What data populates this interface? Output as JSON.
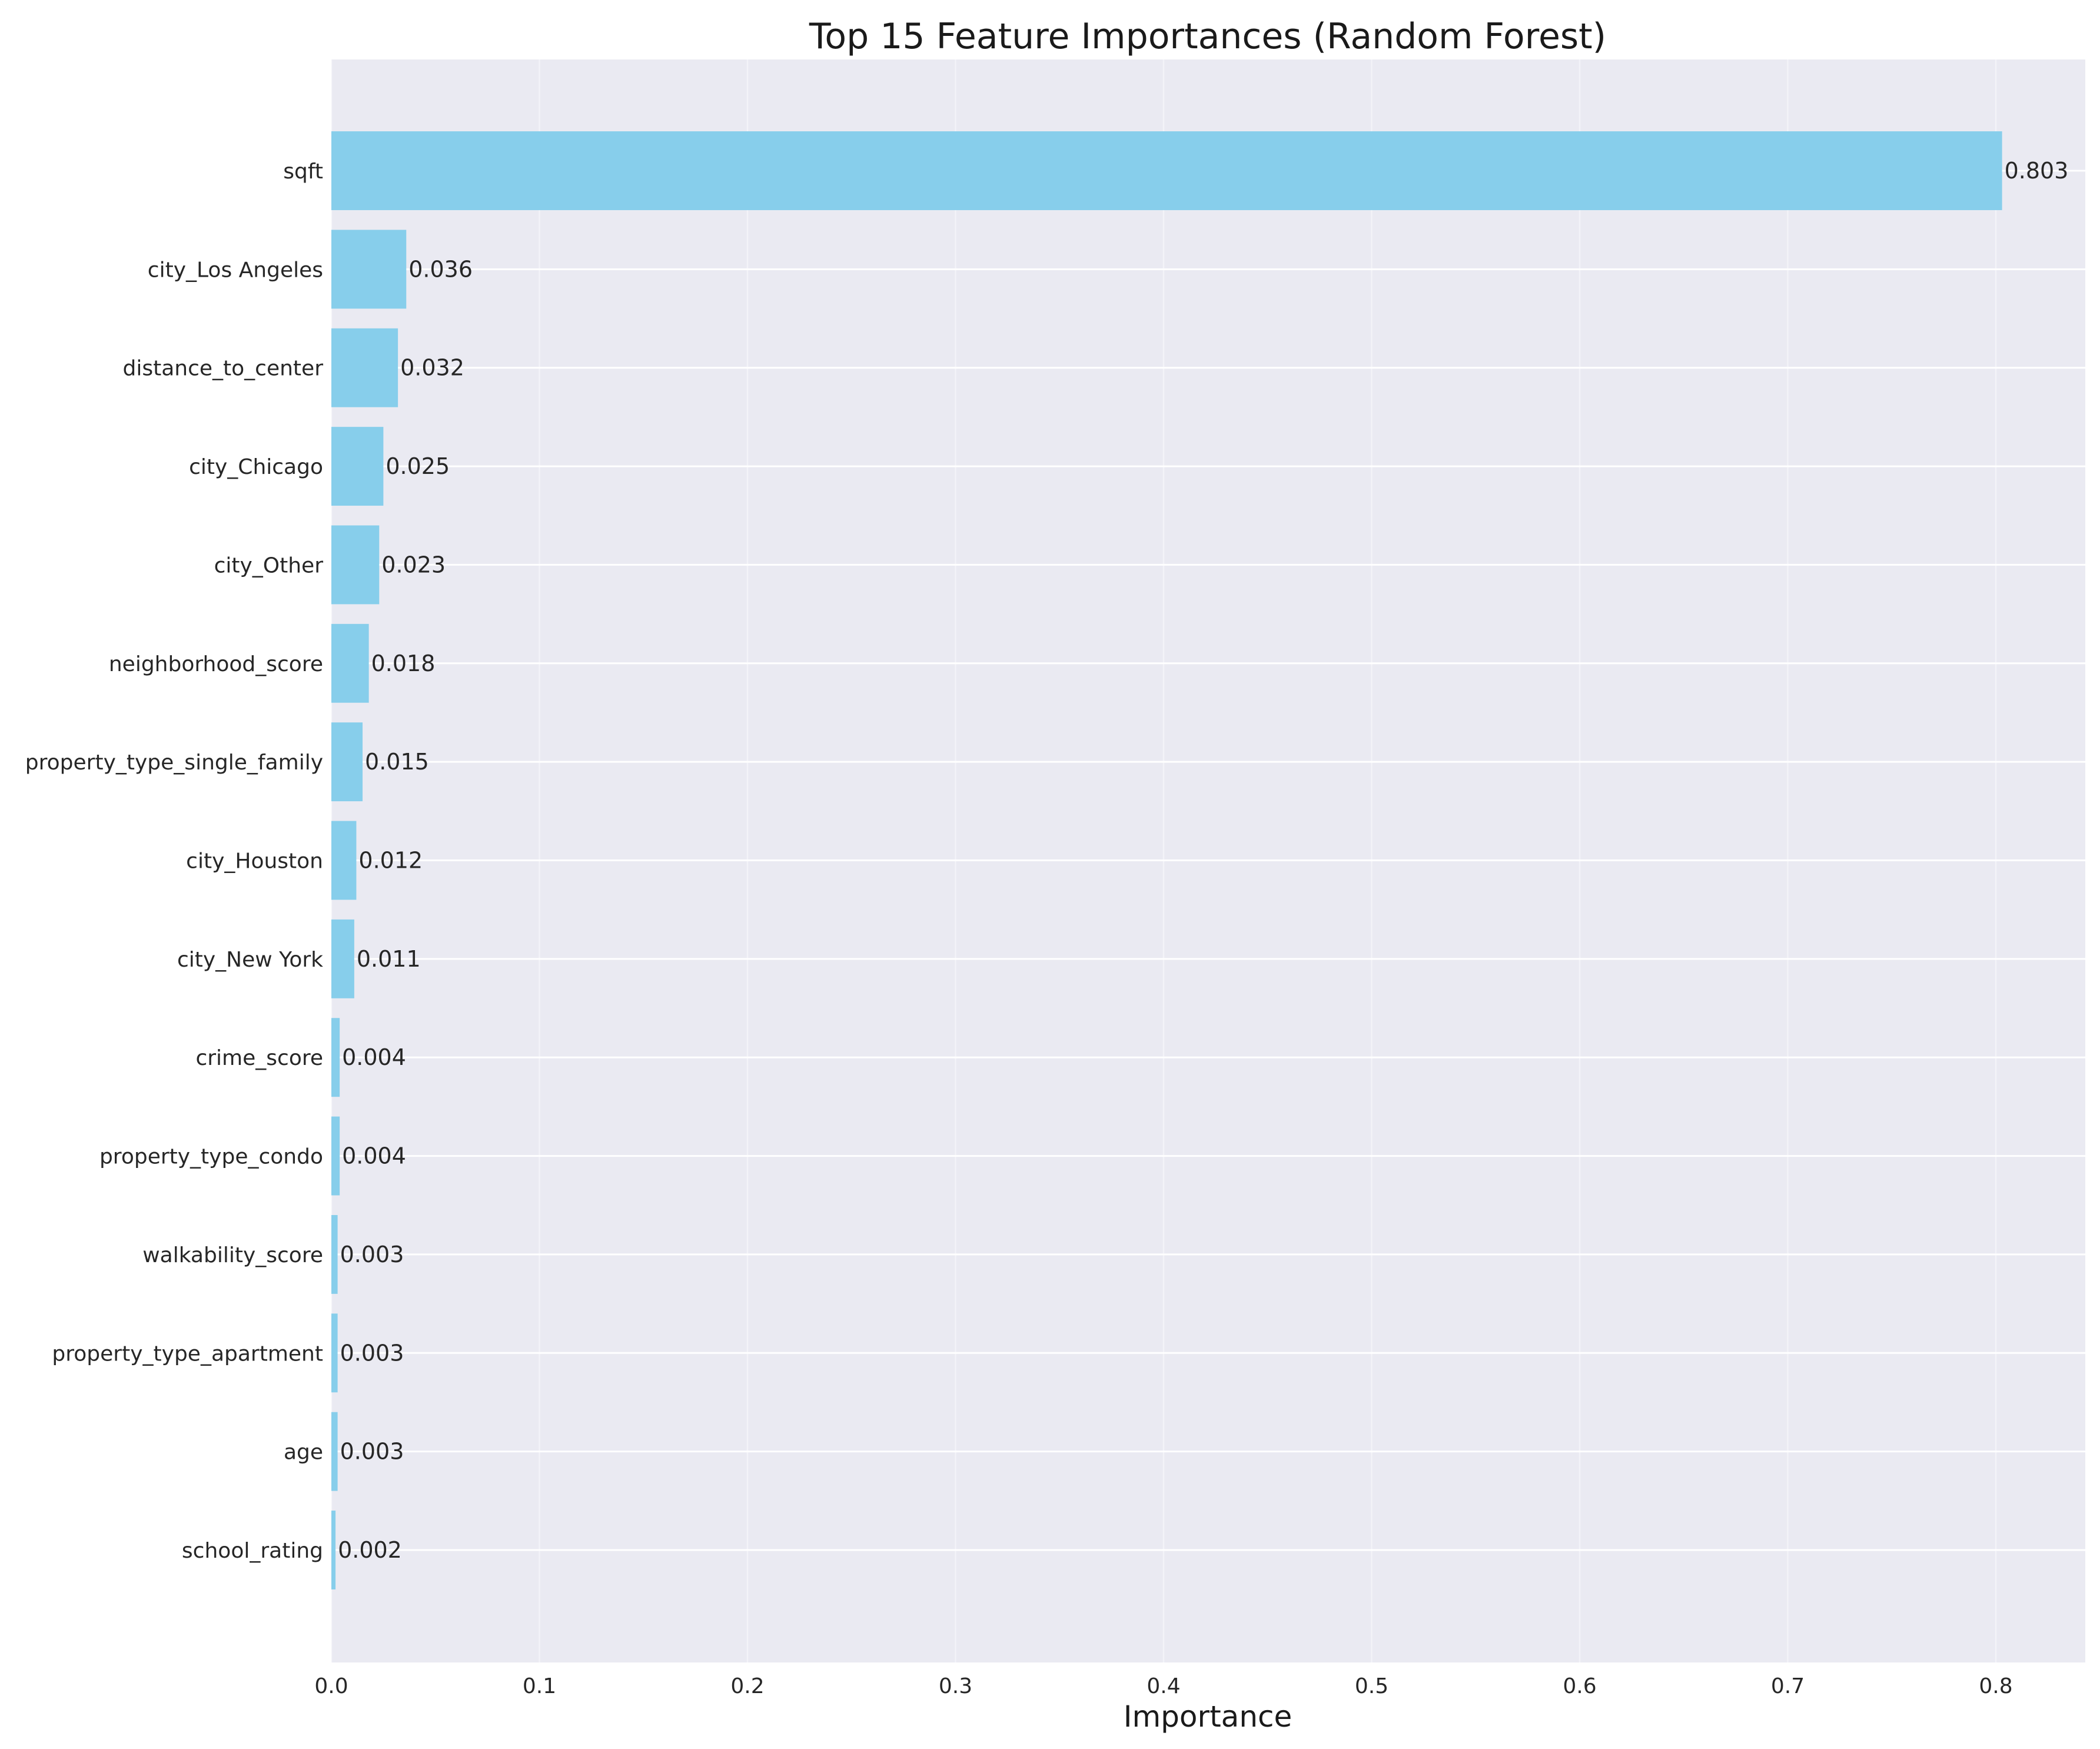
{
  "chart_data": {
    "type": "bar",
    "orientation": "horizontal",
    "title": "Top 15 Feature Importances (Random Forest)",
    "xlabel": "Importance",
    "ylabel": "",
    "xlim": [
      0,
      0.843
    ],
    "xticks": [
      0.0,
      0.1,
      0.2,
      0.3,
      0.4,
      0.5,
      0.6,
      0.7,
      0.8
    ],
    "xtick_labels": [
      "0.0",
      "0.1",
      "0.2",
      "0.3",
      "0.4",
      "0.5",
      "0.6",
      "0.7",
      "0.8"
    ],
    "grid": true,
    "categories": [
      "sqft",
      "city_Los Angeles",
      "distance_to_center",
      "city_Chicago",
      "city_Other",
      "neighborhood_score",
      "property_type_single_family",
      "city_Houston",
      "city_New York",
      "crime_score",
      "property_type_condo",
      "walkability_score",
      "property_type_apartment",
      "age",
      "school_rating"
    ],
    "values": [
      0.803,
      0.036,
      0.032,
      0.025,
      0.023,
      0.018,
      0.015,
      0.012,
      0.011,
      0.004,
      0.004,
      0.003,
      0.003,
      0.003,
      0.002
    ],
    "value_labels": [
      "0.803",
      "0.036",
      "0.032",
      "0.025",
      "0.023",
      "0.018",
      "0.015",
      "0.012",
      "0.011",
      "0.004",
      "0.004",
      "0.003",
      "0.003",
      "0.003",
      "0.002"
    ],
    "colors": {
      "bar": "#87ceeb",
      "plot_background": "#eaeaf2",
      "grid": "#ffffff"
    }
  }
}
